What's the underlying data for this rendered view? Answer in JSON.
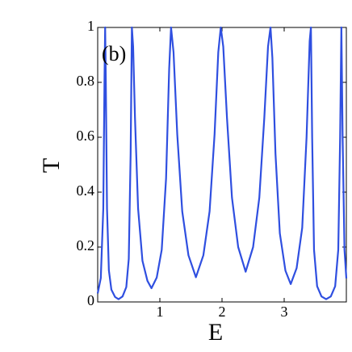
{
  "chart_data": {
    "type": "line",
    "annotation": "(b)",
    "xlabel": "E",
    "ylabel": "T",
    "color": "#2f4fe0",
    "x": [
      0,
      0.05,
      0.09,
      0.11,
      0.12,
      0.13,
      0.15,
      0.18,
      0.22,
      0.28,
      0.335,
      0.4,
      0.46,
      0.5,
      0.53,
      0.55,
      0.57,
      0.6,
      0.65,
      0.72,
      0.8,
      0.865,
      0.95,
      1.03,
      1.1,
      1.15,
      1.18,
      1.22,
      1.28,
      1.36,
      1.46,
      1.58,
      1.7,
      1.8,
      1.88,
      1.94,
      1.98,
      2.02,
      2.08,
      2.16,
      2.26,
      2.38,
      2.5,
      2.6,
      2.68,
      2.74,
      2.78,
      2.81,
      2.86,
      2.93,
      3.02,
      3.105,
      3.2,
      3.29,
      3.36,
      3.41,
      3.43,
      3.45,
      3.48,
      3.53,
      3.6,
      3.675,
      3.75,
      3.82,
      3.87,
      3.9,
      3.92,
      3.94,
      3.97,
      4.0
    ],
    "values": [
      0.031,
      0.087,
      0.34,
      0.82,
      1,
      0.82,
      0.34,
      0.115,
      0.045,
      0.018,
      0.01,
      0.02,
      0.054,
      0.157,
      0.54,
      1,
      0.93,
      0.67,
      0.34,
      0.15,
      0.077,
      0.05,
      0.089,
      0.19,
      0.45,
      0.85,
      1,
      0.91,
      0.61,
      0.33,
      0.17,
      0.09,
      0.17,
      0.33,
      0.61,
      0.91,
      1,
      0.93,
      0.67,
      0.38,
      0.2,
      0.11,
      0.2,
      0.38,
      0.67,
      0.93,
      1,
      0.89,
      0.54,
      0.25,
      0.114,
      0.065,
      0.123,
      0.27,
      0.6,
      0.95,
      1,
      0.6,
      0.19,
      0.057,
      0.02,
      0.01,
      0.02,
      0.057,
      0.19,
      0.6,
      1,
      0.6,
      0.19,
      0.086
    ],
    "xlim": [
      0,
      4
    ],
    "ylim": [
      0,
      1
    ],
    "xticks": [
      1,
      2,
      3
    ],
    "yticks": [
      0,
      0.2,
      0.4,
      0.6,
      0.8,
      1
    ]
  }
}
